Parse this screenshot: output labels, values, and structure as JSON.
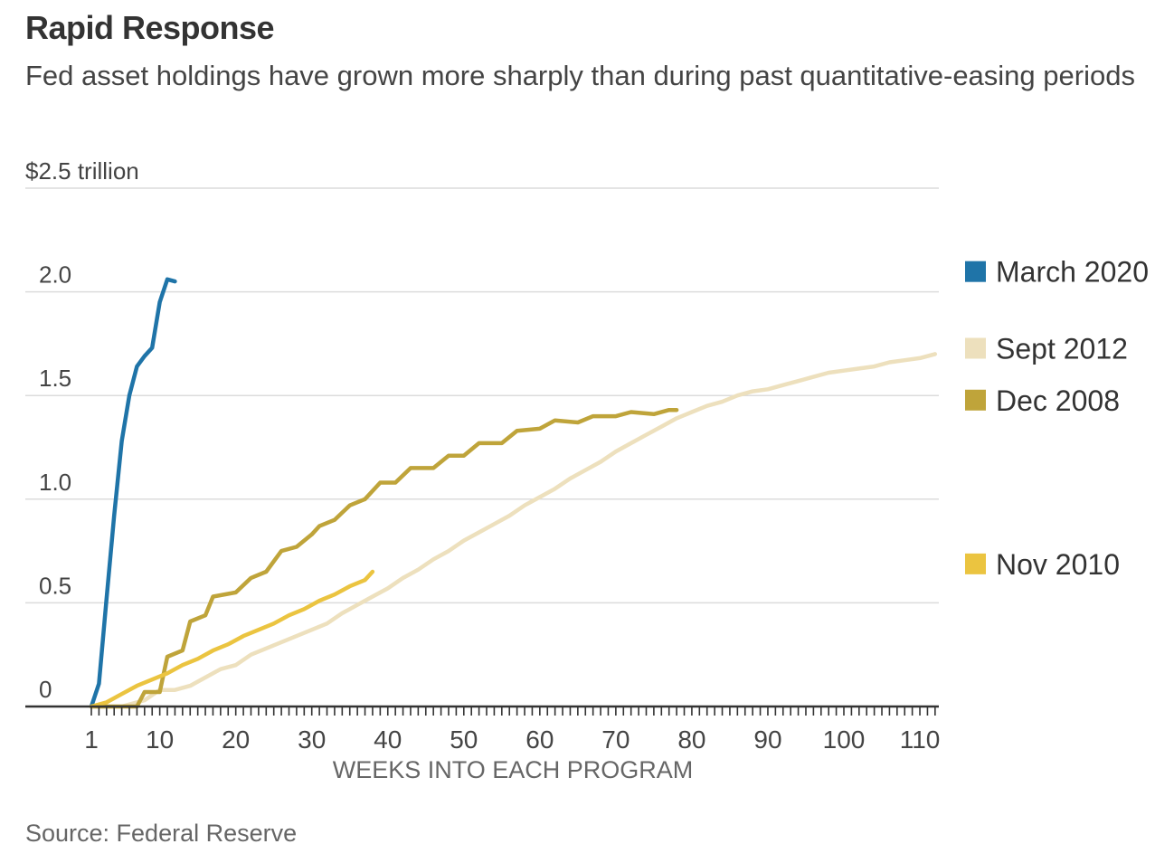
{
  "header": {
    "title": "Rapid Response",
    "subtitle": "Fed asset holdings have grown more sharply than during past quantitative-easing periods"
  },
  "footer": {
    "source": "Source: Federal Reserve"
  },
  "chart_data": {
    "type": "line",
    "title": "Rapid Response",
    "subtitle": "Fed asset holdings have grown more sharply than during past quantitative-easing periods",
    "xlabel": "WEEKS INTO EACH PROGRAM",
    "ylabel": "$2.5 trillion",
    "xlim": [
      1,
      113
    ],
    "ylim": [
      0,
      2.5
    ],
    "x_ticks": [
      1,
      10,
      20,
      30,
      40,
      50,
      60,
      70,
      80,
      90,
      100,
      110
    ],
    "x_tick_labels": [
      "1",
      "10",
      "20",
      "30",
      "40",
      "50",
      "60",
      "70",
      "80",
      "90",
      "100",
      "110"
    ],
    "y_ticks": [
      0,
      0.5,
      1.0,
      1.5,
      2.0,
      2.5
    ],
    "y_tick_labels": [
      "0",
      "0.5",
      "1.0",
      "1.5",
      "2.0",
      "$2.5 trillion"
    ],
    "grid": true,
    "legend_position": "right",
    "series": [
      {
        "name": "March 2020",
        "color": "#1f74a8",
        "x": [
          1,
          2,
          3,
          4,
          5,
          6,
          7,
          8,
          9,
          10,
          11,
          12
        ],
        "y": [
          0,
          0.11,
          0.52,
          0.92,
          1.28,
          1.5,
          1.64,
          1.69,
          1.73,
          1.95,
          2.06,
          2.05
        ]
      },
      {
        "name": "Sept 2012",
        "color": "#ede0bd",
        "x": [
          1,
          5,
          8,
          10,
          12,
          14,
          16,
          18,
          20,
          22,
          24,
          26,
          28,
          30,
          32,
          34,
          36,
          38,
          40,
          42,
          44,
          46,
          48,
          50,
          52,
          54,
          56,
          58,
          60,
          62,
          64,
          66,
          68,
          70,
          72,
          74,
          76,
          78,
          80,
          82,
          84,
          86,
          88,
          90,
          92,
          94,
          96,
          98,
          100,
          102,
          104,
          106,
          108,
          110,
          112
        ],
        "y": [
          0,
          0.0,
          0.03,
          0.08,
          0.08,
          0.1,
          0.14,
          0.18,
          0.2,
          0.25,
          0.28,
          0.31,
          0.34,
          0.37,
          0.4,
          0.45,
          0.49,
          0.53,
          0.57,
          0.62,
          0.66,
          0.71,
          0.75,
          0.8,
          0.84,
          0.88,
          0.92,
          0.97,
          1.01,
          1.05,
          1.1,
          1.14,
          1.18,
          1.23,
          1.27,
          1.31,
          1.35,
          1.39,
          1.42,
          1.45,
          1.47,
          1.5,
          1.52,
          1.53,
          1.55,
          1.57,
          1.59,
          1.61,
          1.62,
          1.63,
          1.64,
          1.66,
          1.67,
          1.68,
          1.7
        ]
      },
      {
        "name": "Dec 2008",
        "color": "#bfa43a",
        "x": [
          1,
          7,
          8,
          10,
          11,
          13,
          14,
          16,
          17,
          20,
          22,
          24,
          26,
          28,
          30,
          31,
          33,
          35,
          37,
          39,
          41,
          43,
          46,
          48,
          50,
          52,
          55,
          57,
          60,
          62,
          65,
          67,
          70,
          72,
          75,
          77,
          78
        ],
        "y": [
          0,
          0.0,
          0.07,
          0.07,
          0.24,
          0.27,
          0.41,
          0.44,
          0.53,
          0.55,
          0.62,
          0.65,
          0.75,
          0.77,
          0.83,
          0.87,
          0.9,
          0.97,
          1.0,
          1.08,
          1.08,
          1.15,
          1.15,
          1.21,
          1.21,
          1.27,
          1.27,
          1.33,
          1.34,
          1.38,
          1.37,
          1.4,
          1.4,
          1.42,
          1.41,
          1.43,
          1.43
        ]
      },
      {
        "name": "Nov 2010",
        "color": "#ebc440",
        "x": [
          1,
          3,
          5,
          7,
          9,
          11,
          13,
          15,
          17,
          19,
          21,
          23,
          25,
          27,
          29,
          31,
          33,
          35,
          37,
          38
        ],
        "y": [
          0,
          0.02,
          0.06,
          0.1,
          0.13,
          0.16,
          0.2,
          0.23,
          0.27,
          0.3,
          0.34,
          0.37,
          0.4,
          0.44,
          0.47,
          0.51,
          0.54,
          0.58,
          0.61,
          0.65
        ]
      }
    ],
    "legend": [
      {
        "label": "March 2020",
        "color": "#1f74a8",
        "anchor_value": 2.1
      },
      {
        "label": "Sept 2012",
        "color": "#ede0bd",
        "anchor_value": 1.73
      },
      {
        "label": "Dec 2008",
        "color": "#bfa43a",
        "anchor_value": 1.48
      },
      {
        "label": "Nov 2010",
        "color": "#ebc440",
        "anchor_value": 0.69
      }
    ]
  }
}
